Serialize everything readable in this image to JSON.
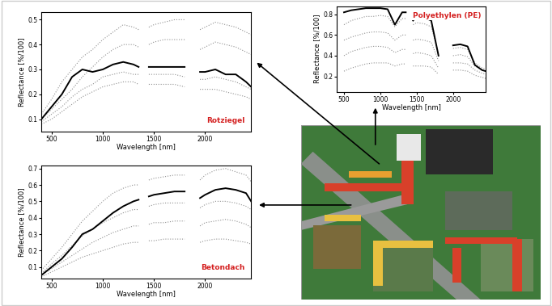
{
  "chart_data": [
    {
      "type": "line",
      "x_label": "Wavelength [nm]",
      "y_label": "Reflectance [%/100]",
      "annotation": "Rotziegel",
      "xlim": [
        400,
        2450
      ],
      "ylim": [
        0.05,
        0.53
      ],
      "xticks": [
        500,
        1000,
        1500,
        2000
      ],
      "yticks": [
        0.1,
        0.2,
        0.3,
        0.4,
        0.5
      ],
      "x": [
        400,
        500,
        600,
        700,
        800,
        900,
        1000,
        1100,
        1200,
        1300,
        1350,
        1400,
        1450,
        1500,
        1600,
        1700,
        1800,
        1850,
        1900,
        1950,
        2000,
        2100,
        2200,
        2300,
        2400,
        2450
      ],
      "series": [
        {
          "color": "#000000",
          "line_style": "solid",
          "values": [
            0.1,
            0.15,
            0.2,
            0.27,
            0.3,
            0.29,
            0.3,
            0.32,
            0.33,
            0.32,
            0.31,
            null,
            0.31,
            0.31,
            0.31,
            0.31,
            0.31,
            null,
            null,
            0.29,
            0.29,
            0.3,
            0.28,
            0.28,
            0.25,
            0.23
          ]
        },
        {
          "color": "#909090",
          "line_style": "dotted",
          "values": [
            0.12,
            0.18,
            0.25,
            0.3,
            0.35,
            0.38,
            0.42,
            0.45,
            0.48,
            0.47,
            0.46,
            null,
            0.47,
            0.48,
            0.49,
            0.5,
            0.5,
            null,
            null,
            0.46,
            0.47,
            0.49,
            0.48,
            0.47,
            0.45,
            0.44
          ]
        },
        {
          "color": "#909090",
          "line_style": "dotted",
          "values": [
            0.1,
            0.14,
            0.18,
            0.22,
            0.27,
            0.31,
            0.35,
            0.38,
            0.4,
            0.4,
            0.39,
            null,
            0.4,
            0.41,
            0.42,
            0.42,
            0.42,
            null,
            null,
            0.38,
            0.39,
            0.41,
            0.4,
            0.39,
            0.37,
            0.36
          ]
        },
        {
          "color": "#909090",
          "line_style": "dotted",
          "values": [
            0.09,
            0.12,
            0.15,
            0.19,
            0.22,
            0.24,
            0.27,
            0.28,
            0.29,
            0.28,
            0.28,
            null,
            0.28,
            0.28,
            0.28,
            0.28,
            0.27,
            null,
            null,
            0.26,
            0.26,
            0.27,
            0.26,
            0.25,
            0.23,
            0.22
          ]
        },
        {
          "color": "#909090",
          "line_style": "dotted",
          "values": [
            0.08,
            0.1,
            0.13,
            0.16,
            0.19,
            0.21,
            0.23,
            0.24,
            0.25,
            0.25,
            0.24,
            null,
            0.24,
            0.24,
            0.24,
            0.24,
            0.23,
            null,
            null,
            0.22,
            0.22,
            0.22,
            0.21,
            0.2,
            0.19,
            0.18
          ]
        }
      ]
    },
    {
      "type": "line",
      "x_label": "Wavelength [nm]",
      "y_label": "Reflectance [%/100]",
      "annotation": "Polyethylen (PE)",
      "xlim": [
        400,
        2450
      ],
      "ylim": [
        0.05,
        0.88
      ],
      "xticks": [
        500,
        1000,
        1500,
        2000
      ],
      "yticks": [
        0.2,
        0.4,
        0.6,
        0.8
      ],
      "x": [
        400,
        500,
        600,
        700,
        800,
        900,
        1000,
        1100,
        1200,
        1300,
        1350,
        1400,
        1450,
        1500,
        1600,
        1700,
        1800,
        1850,
        1900,
        1950,
        2000,
        2100,
        2200,
        2300,
        2400,
        2450
      ],
      "series": [
        {
          "color": "#000000",
          "line_style": "solid",
          "values": [
            null,
            0.82,
            0.84,
            0.85,
            0.86,
            0.86,
            0.86,
            0.85,
            0.7,
            0.82,
            0.82,
            null,
            0.74,
            0.78,
            0.77,
            0.74,
            0.4,
            null,
            null,
            null,
            0.5,
            0.51,
            0.49,
            0.31,
            0.26,
            0.25
          ]
        },
        {
          "color": "#909090",
          "line_style": "dotted",
          "values": [
            null,
            0.7,
            0.74,
            0.76,
            0.78,
            0.78,
            0.79,
            0.78,
            0.68,
            0.76,
            0.76,
            null,
            0.7,
            0.72,
            0.71,
            0.68,
            0.42,
            null,
            null,
            null,
            0.47,
            0.48,
            0.46,
            0.33,
            0.28,
            0.27
          ]
        },
        {
          "color": "#909090",
          "line_style": "dotted",
          "values": [
            null,
            0.55,
            0.58,
            0.6,
            0.62,
            0.63,
            0.63,
            0.62,
            0.55,
            0.6,
            0.6,
            null,
            0.55,
            0.56,
            0.55,
            0.53,
            0.35,
            null,
            null,
            null,
            0.4,
            0.41,
            0.39,
            0.3,
            0.26,
            0.25
          ]
        },
        {
          "color": "#909090",
          "line_style": "dotted",
          "values": [
            null,
            0.4,
            0.44,
            0.46,
            0.48,
            0.49,
            0.49,
            0.48,
            0.43,
            0.46,
            0.46,
            null,
            0.42,
            0.43,
            0.42,
            0.4,
            0.28,
            null,
            null,
            null,
            0.33,
            0.33,
            0.32,
            0.26,
            0.23,
            0.22
          ]
        },
        {
          "color": "#909090",
          "line_style": "dotted",
          "values": [
            null,
            0.25,
            0.28,
            0.3,
            0.32,
            0.33,
            0.33,
            0.33,
            0.3,
            0.32,
            0.32,
            null,
            0.3,
            0.3,
            0.3,
            0.29,
            0.22,
            null,
            null,
            null,
            0.26,
            0.26,
            0.25,
            0.21,
            0.19,
            0.18
          ]
        }
      ]
    },
    {
      "type": "line",
      "x_label": "Wavelength [nm]",
      "y_label": "Reflectance [%/100]",
      "annotation": "Betondach",
      "xlim": [
        400,
        2450
      ],
      "ylim": [
        0.03,
        0.72
      ],
      "xticks": [
        500,
        1000,
        1500,
        2000
      ],
      "yticks": [
        0.1,
        0.2,
        0.3,
        0.4,
        0.5,
        0.6,
        0.7
      ],
      "x": [
        400,
        500,
        600,
        700,
        800,
        900,
        1000,
        1100,
        1200,
        1300,
        1350,
        1400,
        1450,
        1500,
        1600,
        1700,
        1800,
        1850,
        1900,
        1950,
        2000,
        2100,
        2200,
        2300,
        2400,
        2450
      ],
      "series": [
        {
          "color": "#000000",
          "line_style": "solid",
          "values": [
            0.05,
            0.1,
            0.15,
            0.22,
            0.3,
            0.33,
            0.38,
            0.43,
            0.47,
            0.5,
            0.51,
            null,
            0.53,
            0.54,
            0.55,
            0.56,
            0.56,
            null,
            null,
            0.52,
            0.54,
            0.57,
            0.58,
            0.57,
            0.55,
            0.5
          ]
        },
        {
          "color": "#909090",
          "line_style": "dotted",
          "values": [
            0.08,
            0.15,
            0.22,
            0.3,
            0.38,
            0.44,
            0.5,
            0.55,
            0.58,
            0.6,
            0.6,
            null,
            0.63,
            0.64,
            0.65,
            0.66,
            0.66,
            null,
            null,
            0.63,
            0.66,
            0.69,
            0.7,
            0.68,
            0.66,
            0.62
          ]
        },
        {
          "color": "#909090",
          "line_style": "dotted",
          "values": [
            0.06,
            0.12,
            0.17,
            0.23,
            0.29,
            0.33,
            0.37,
            0.4,
            0.43,
            0.45,
            0.45,
            null,
            0.47,
            0.48,
            0.49,
            0.49,
            0.49,
            null,
            null,
            0.46,
            0.48,
            0.5,
            0.5,
            0.49,
            0.47,
            0.45
          ]
        },
        {
          "color": "#909090",
          "line_style": "dotted",
          "values": [
            0.05,
            0.09,
            0.13,
            0.17,
            0.21,
            0.25,
            0.28,
            0.31,
            0.33,
            0.35,
            0.35,
            null,
            0.36,
            0.37,
            0.37,
            0.38,
            0.38,
            null,
            null,
            0.35,
            0.37,
            0.38,
            0.39,
            0.38,
            0.36,
            0.34
          ]
        },
        {
          "color": "#909090",
          "line_style": "dotted",
          "values": [
            0.04,
            0.07,
            0.1,
            0.13,
            0.16,
            0.18,
            0.2,
            0.22,
            0.24,
            0.25,
            0.25,
            null,
            0.26,
            0.26,
            0.27,
            0.27,
            0.27,
            null,
            null,
            0.25,
            0.26,
            0.27,
            0.27,
            0.26,
            0.25,
            0.24
          ]
        }
      ]
    }
  ]
}
